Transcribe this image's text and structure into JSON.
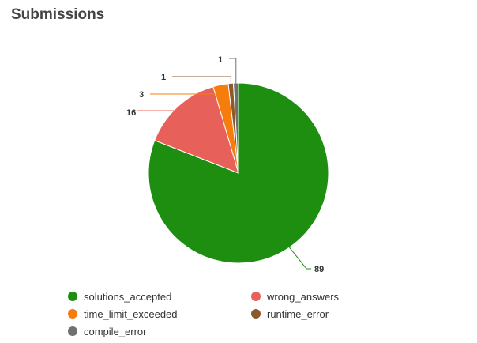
{
  "header": {
    "title": "Submissions"
  },
  "chart_data": {
    "type": "pie",
    "title": "Submissions",
    "categories": [
      "solutions_accepted",
      "wrong_answers",
      "time_limit_exceeded",
      "runtime_error",
      "compile_error"
    ],
    "values": [
      89,
      16,
      3,
      1,
      1
    ],
    "colors": [
      "#1e8e10",
      "#e8605a",
      "#f57c0d",
      "#8a5a2e",
      "#707070"
    ],
    "legend_position": "bottom",
    "data_labels": true
  }
}
